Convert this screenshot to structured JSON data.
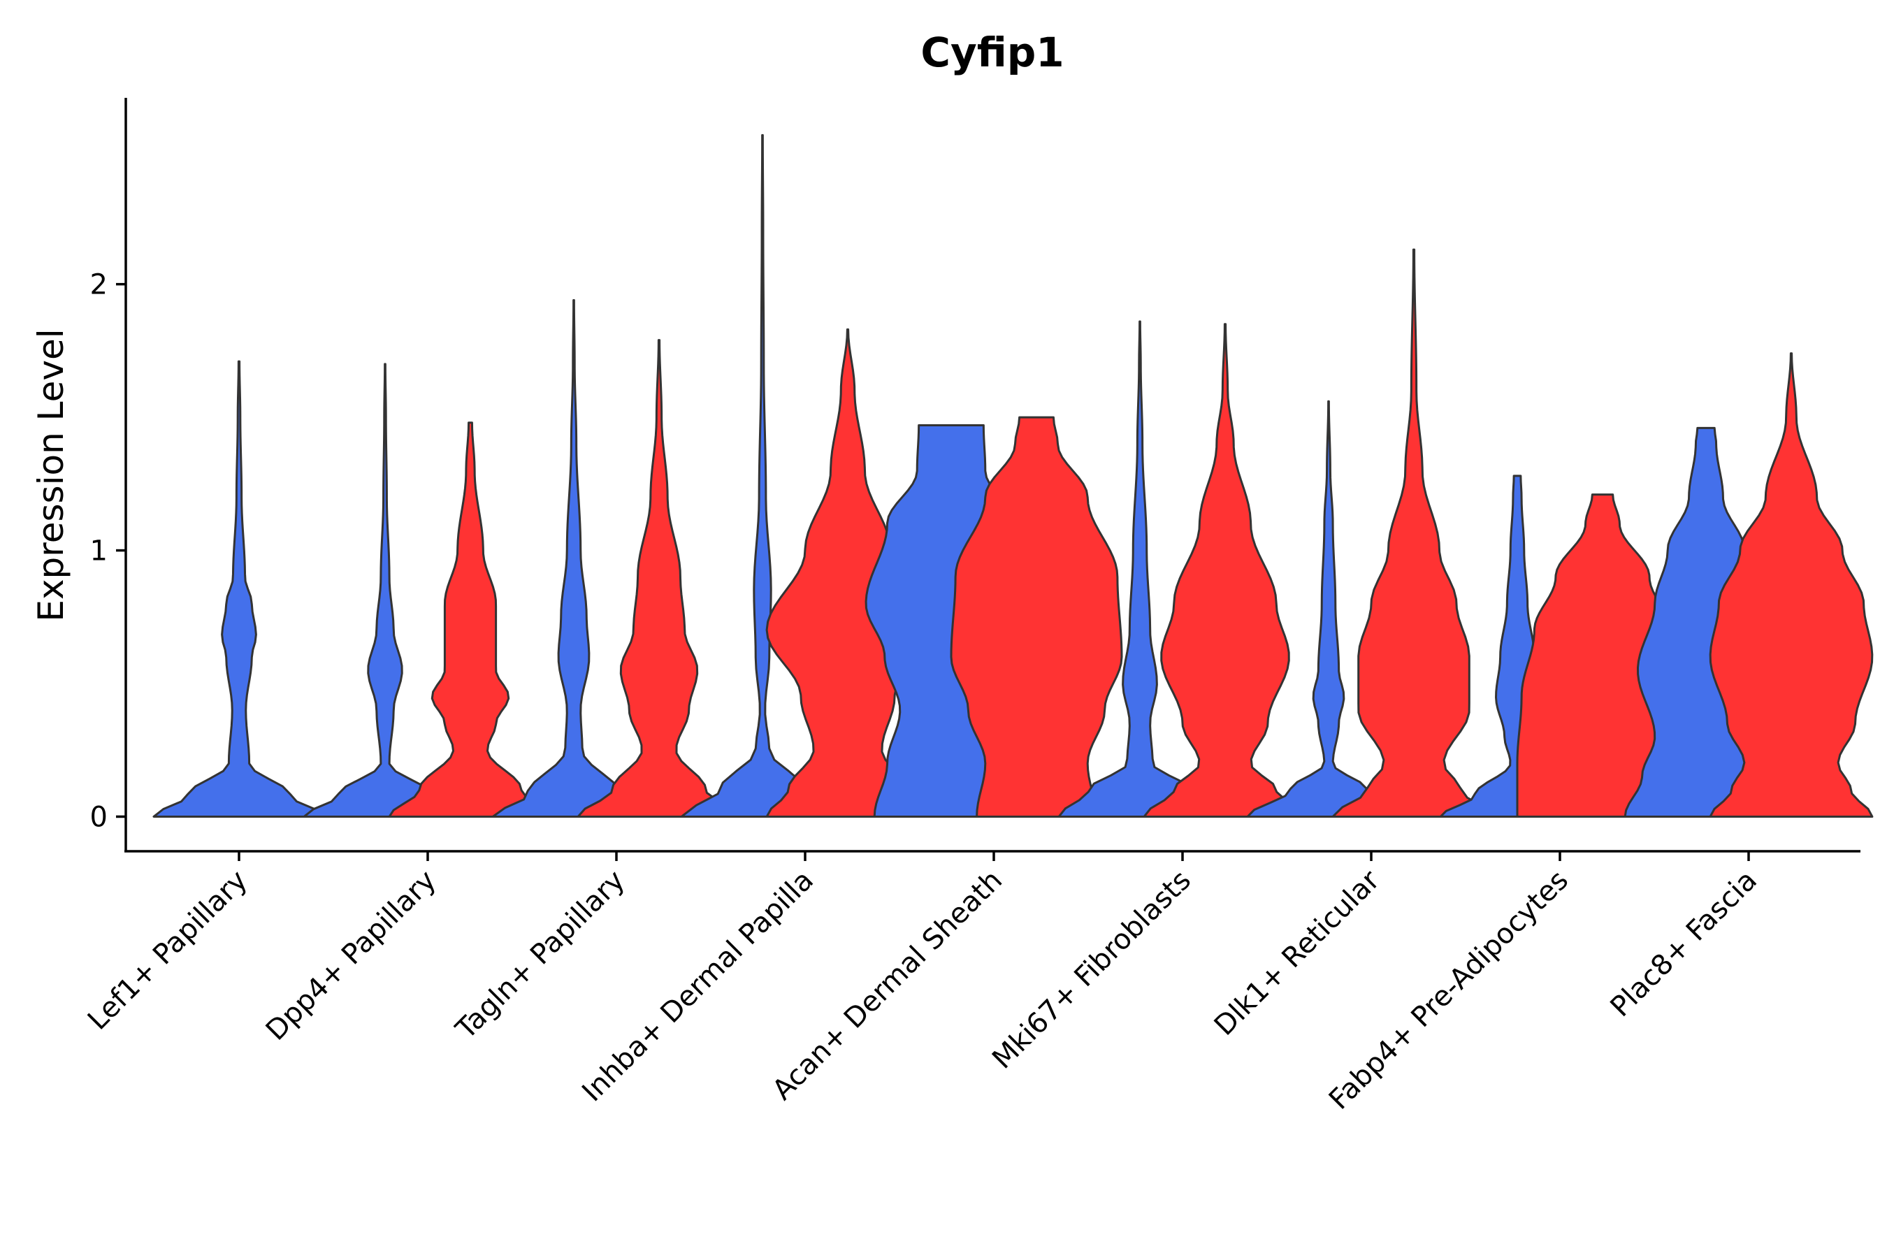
{
  "chart_data": {
    "type": "violin",
    "title": "Cyfip1",
    "xlabel": "",
    "ylabel": "Expression Level",
    "ylim": [
      -0.13,
      2.7
    ],
    "yticks": [
      0,
      1,
      2
    ],
    "grid": false,
    "legend": "none",
    "categories": [
      "Lef1+ Papillary",
      "Dpp4+ Papillary",
      "Tagln+ Papillary",
      "Inhba+ Dermal Papilla",
      "Acan+ Dermal Sheath",
      "Mki67+ Fibroblasts",
      "Dlk1+ Reticular",
      "Fabp4+ Pre-Adipocytes",
      "Plac8+ Fascia"
    ],
    "colors": {
      "group_a": "#4470EB",
      "group_b": "#FF3333"
    },
    "series": [
      {
        "name": "group_a",
        "color": "#4470EB",
        "violins": [
          {
            "max": 1.71,
            "widths": [
              [
                0,
                1.0
              ],
              [
                0.08,
                0.6
              ],
              [
                0.2,
                0.12
              ],
              [
                0.4,
                0.08
              ],
              [
                0.6,
                0.15
              ],
              [
                0.68,
                0.2
              ],
              [
                0.8,
                0.15
              ],
              [
                0.9,
                0.07
              ],
              [
                1.2,
                0.03
              ],
              [
                1.5,
                0.015
              ],
              [
                1.71,
                0.005
              ]
            ]
          },
          {
            "max": 1.7,
            "widths": [
              [
                0,
                0.95
              ],
              [
                0.08,
                0.55
              ],
              [
                0.2,
                0.05
              ],
              [
                0.4,
                0.1
              ],
              [
                0.55,
                0.2
              ],
              [
                0.7,
                0.1
              ],
              [
                0.9,
                0.05
              ],
              [
                1.2,
                0.02
              ],
              [
                1.5,
                0.01
              ],
              [
                1.7,
                0.003
              ]
            ]
          },
          {
            "max": 1.94,
            "widths": [
              [
                0,
                0.95
              ],
              [
                0.08,
                0.55
              ],
              [
                0.25,
                0.1
              ],
              [
                0.4,
                0.08
              ],
              [
                0.6,
                0.18
              ],
              [
                0.75,
                0.15
              ],
              [
                1.0,
                0.08
              ],
              [
                1.4,
                0.03
              ],
              [
                1.7,
                0.01
              ],
              [
                1.94,
                0.003
              ]
            ]
          },
          {
            "max": 2.56,
            "widths": [
              [
                0,
                0.95
              ],
              [
                0.1,
                0.5
              ],
              [
                0.25,
                0.08
              ],
              [
                0.4,
                0.03
              ],
              [
                0.6,
                0.08
              ],
              [
                0.85,
                0.1
              ],
              [
                1.2,
                0.04
              ],
              [
                1.7,
                0.015
              ],
              [
                2.2,
                0.008
              ],
              [
                2.56,
                0.003
              ]
            ]
          },
          {
            "max": 1.47,
            "widths": [
              [
                0,
                0.9
              ],
              [
                0.2,
                0.75
              ],
              [
                0.4,
                0.6
              ],
              [
                0.6,
                0.78
              ],
              [
                0.8,
                1.0
              ],
              [
                1.1,
                0.75
              ],
              [
                1.3,
                0.4
              ],
              [
                1.47,
                0.38
              ]
            ]
          },
          {
            "max": 1.86,
            "widths": [
              [
                0,
                0.95
              ],
              [
                0.1,
                0.6
              ],
              [
                0.2,
                0.15
              ],
              [
                0.35,
                0.12
              ],
              [
                0.5,
                0.2
              ],
              [
                0.7,
                0.12
              ],
              [
                1.0,
                0.08
              ],
              [
                1.4,
                0.03
              ],
              [
                1.7,
                0.01
              ],
              [
                1.86,
                0.003
              ]
            ]
          },
          {
            "max": 1.56,
            "widths": [
              [
                0,
                0.95
              ],
              [
                0.1,
                0.45
              ],
              [
                0.2,
                0.05
              ],
              [
                0.35,
                0.12
              ],
              [
                0.45,
                0.18
              ],
              [
                0.55,
                0.12
              ],
              [
                0.8,
                0.08
              ],
              [
                1.1,
                0.05
              ],
              [
                1.3,
                0.02
              ],
              [
                1.56,
                0.003
              ]
            ]
          },
          {
            "max": 1.28,
            "widths": [
              [
                0,
                0.9
              ],
              [
                0.08,
                0.5
              ],
              [
                0.2,
                0.08
              ],
              [
                0.3,
                0.15
              ],
              [
                0.45,
                0.25
              ],
              [
                0.6,
                0.2
              ],
              [
                0.8,
                0.12
              ],
              [
                1.0,
                0.08
              ],
              [
                1.2,
                0.05
              ],
              [
                1.28,
                0.04
              ]
            ]
          },
          {
            "max": 1.46,
            "widths": [
              [
                0,
                0.95
              ],
              [
                0.15,
                0.75
              ],
              [
                0.3,
                0.6
              ],
              [
                0.55,
                0.8
              ],
              [
                0.8,
                0.6
              ],
              [
                1.0,
                0.45
              ],
              [
                1.2,
                0.2
              ],
              [
                1.4,
                0.12
              ],
              [
                1.46,
                0.1
              ]
            ]
          }
        ]
      },
      {
        "name": "group_b",
        "color": "#FF3333",
        "violins": [
          null,
          {
            "max": 1.48,
            "widths": [
              [
                0,
                0.95
              ],
              [
                0.1,
                0.6
              ],
              [
                0.25,
                0.2
              ],
              [
                0.35,
                0.3
              ],
              [
                0.45,
                0.45
              ],
              [
                0.55,
                0.3
              ],
              [
                0.8,
                0.3
              ],
              [
                1.0,
                0.15
              ],
              [
                1.3,
                0.05
              ],
              [
                1.48,
                0.02
              ]
            ]
          },
          {
            "max": 1.79,
            "widths": [
              [
                0,
                0.95
              ],
              [
                0.1,
                0.55
              ],
              [
                0.25,
                0.2
              ],
              [
                0.4,
                0.35
              ],
              [
                0.55,
                0.45
              ],
              [
                0.7,
                0.3
              ],
              [
                0.9,
                0.25
              ],
              [
                1.2,
                0.1
              ],
              [
                1.5,
                0.03
              ],
              [
                1.79,
                0.005
              ]
            ]
          },
          {
            "max": 1.83,
            "widths": [
              [
                0,
                0.95
              ],
              [
                0.1,
                0.7
              ],
              [
                0.25,
                0.4
              ],
              [
                0.45,
                0.55
              ],
              [
                0.7,
                0.95
              ],
              [
                1.0,
                0.5
              ],
              [
                1.3,
                0.2
              ],
              [
                1.6,
                0.08
              ],
              [
                1.83,
                0.005
              ]
            ]
          },
          {
            "max": 1.5,
            "widths": [
              [
                0,
                0.7
              ],
              [
                0.2,
                0.6
              ],
              [
                0.4,
                0.8
              ],
              [
                0.6,
                1.0
              ],
              [
                0.9,
                0.95
              ],
              [
                1.2,
                0.6
              ],
              [
                1.4,
                0.25
              ],
              [
                1.5,
                0.2
              ]
            ]
          },
          {
            "max": 1.85,
            "widths": [
              [
                0,
                0.95
              ],
              [
                0.1,
                0.6
              ],
              [
                0.2,
                0.3
              ],
              [
                0.35,
                0.5
              ],
              [
                0.6,
                0.75
              ],
              [
                0.8,
                0.6
              ],
              [
                1.1,
                0.3
              ],
              [
                1.4,
                0.1
              ],
              [
                1.6,
                0.03
              ],
              [
                1.85,
                0.005
              ]
            ]
          },
          {
            "max": 2.13,
            "widths": [
              [
                0,
                0.95
              ],
              [
                0.1,
                0.55
              ],
              [
                0.2,
                0.35
              ],
              [
                0.4,
                0.65
              ],
              [
                0.6,
                0.65
              ],
              [
                0.8,
                0.5
              ],
              [
                1.0,
                0.3
              ],
              [
                1.3,
                0.1
              ],
              [
                1.6,
                0.03
              ],
              [
                2.13,
                0.005
              ]
            ]
          },
          {
            "max": 1.21,
            "widths": [
              [
                0,
                1.0
              ],
              [
                0.2,
                1.0
              ],
              [
                0.45,
                0.95
              ],
              [
                0.7,
                0.8
              ],
              [
                0.9,
                0.55
              ],
              [
                1.1,
                0.2
              ],
              [
                1.21,
                0.12
              ]
            ]
          },
          {
            "max": 1.74,
            "widths": [
              [
                0,
                0.95
              ],
              [
                0.1,
                0.7
              ],
              [
                0.2,
                0.55
              ],
              [
                0.35,
                0.75
              ],
              [
                0.6,
                0.95
              ],
              [
                0.8,
                0.85
              ],
              [
                1.0,
                0.6
              ],
              [
                1.2,
                0.3
              ],
              [
                1.5,
                0.06
              ],
              [
                1.74,
                0.005
              ]
            ]
          }
        ]
      }
    ]
  }
}
